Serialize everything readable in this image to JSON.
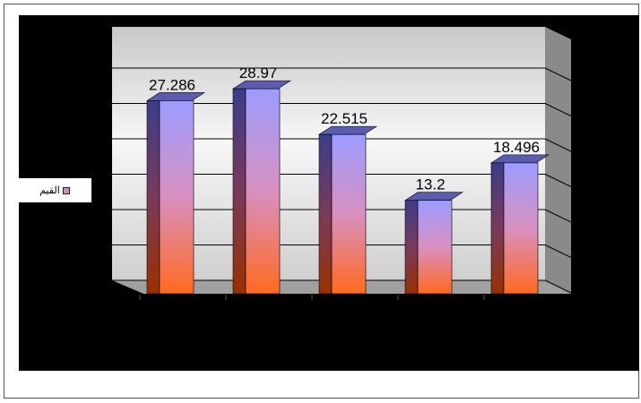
{
  "chart_data": {
    "type": "bar",
    "categories": [
      "",
      "",
      "",
      "",
      ""
    ],
    "series": [
      {
        "name": "القيم",
        "values": [
          27.286,
          28.97,
          22.515,
          13.2,
          18.496
        ]
      }
    ],
    "data_labels": [
      "27.286",
      "28.97",
      "22.515",
      "13.2",
      "18.496"
    ],
    "title": "",
    "xlabel": "",
    "ylabel": "",
    "ylim": [
      0,
      30
    ],
    "grid": true,
    "legend_position": "left",
    "style": "3d-column",
    "colors": {
      "bar_top": "#9c9cff",
      "bar_middle": "#d890c0",
      "bar_bottom": "#ff6a1e",
      "chart_background": "#000000",
      "plot_wall": "#e6e6e6",
      "side_wall": "#8a8a8a",
      "floor": "#a0a0a0"
    }
  },
  "legend": {
    "label": "القيم"
  }
}
